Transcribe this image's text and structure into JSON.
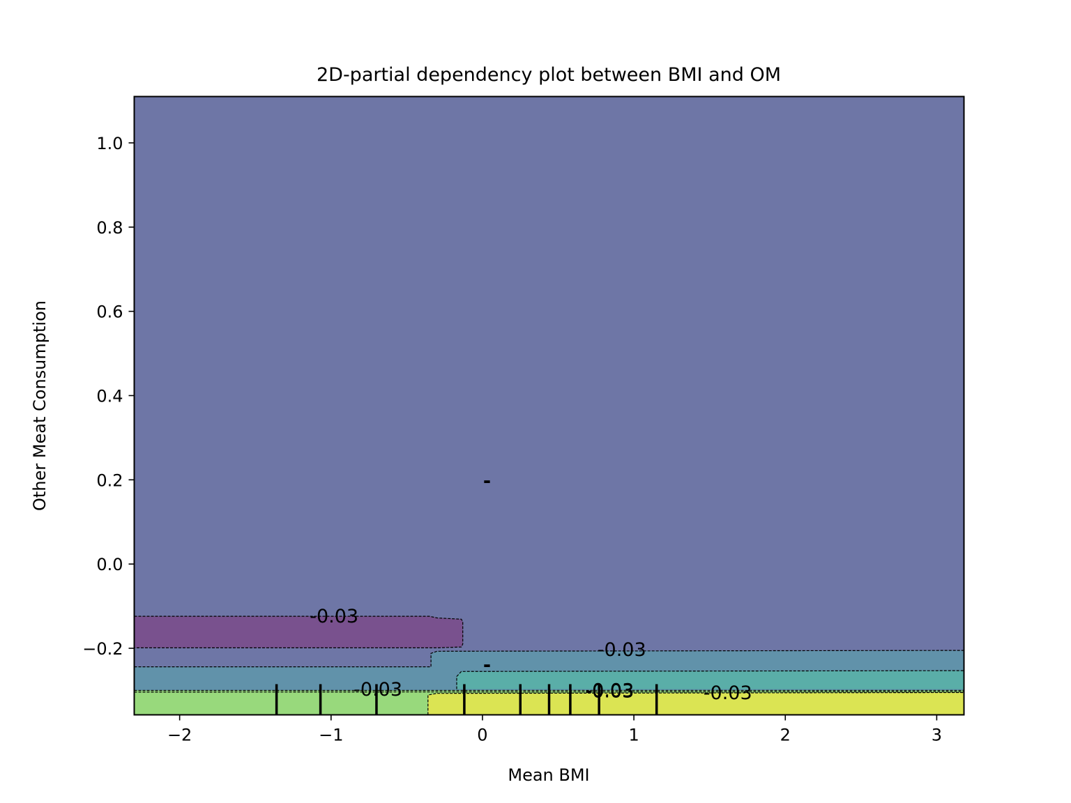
{
  "chart_data": {
    "type": "contour",
    "title": "2D-partial dependency plot between BMI and OM",
    "xlabel": "Mean BMI",
    "ylabel": "Other Meat Consumption",
    "xlim": [
      -2.3,
      3.18
    ],
    "ylim": [
      -0.358,
      1.11
    ],
    "x_ticks": [
      -2,
      -1,
      0,
      1,
      2,
      3
    ],
    "x_tick_labels": [
      "−2",
      "−1",
      "0",
      "1",
      "2",
      "3"
    ],
    "y_ticks": [
      1.0,
      0.8,
      0.6,
      0.4,
      0.2,
      0.0,
      -0.2
    ],
    "y_tick_labels": [
      "1.0",
      "0.8",
      "0.6",
      "0.4",
      "0.2",
      "0.0",
      "−0.2"
    ],
    "grid": false,
    "regions": [
      {
        "name": "background-level",
        "color": "#6e76a6",
        "polygon": [
          [
            -2.3,
            1.11
          ],
          [
            3.18,
            1.11
          ],
          [
            3.18,
            -0.358
          ],
          [
            -2.3,
            -0.358
          ]
        ]
      },
      {
        "name": "dark-purple-level",
        "color": "#79518e",
        "polygon": [
          [
            -2.3,
            -0.124
          ],
          [
            -0.35,
            -0.124
          ],
          [
            -0.3,
            -0.128
          ],
          [
            -0.14,
            -0.131
          ],
          [
            -0.13,
            -0.137
          ],
          [
            -0.13,
            -0.19
          ],
          [
            -0.14,
            -0.197
          ],
          [
            -0.3,
            -0.199
          ],
          [
            -2.3,
            -0.199
          ]
        ]
      },
      {
        "name": "steel-blue-level",
        "color": "#6192aa",
        "polygon": [
          [
            -2.3,
            -0.244
          ],
          [
            -0.34,
            -0.244
          ],
          [
            -0.34,
            -0.212
          ],
          [
            -0.3,
            -0.207
          ],
          [
            3.18,
            -0.205
          ],
          [
            3.18,
            -0.358
          ],
          [
            -2.3,
            -0.358
          ]
        ]
      },
      {
        "name": "teal-level",
        "color": "#5aaea8",
        "polygon": [
          [
            -0.17,
            -0.297
          ],
          [
            -0.17,
            -0.267
          ],
          [
            -0.14,
            -0.255
          ],
          [
            3.18,
            -0.253
          ],
          [
            3.18,
            -0.297
          ]
        ]
      },
      {
        "name": "green-level",
        "color": "#98d97c",
        "polygon": [
          [
            -2.3,
            -0.3
          ],
          [
            3.18,
            -0.3
          ],
          [
            3.18,
            -0.358
          ],
          [
            -2.3,
            -0.358
          ]
        ]
      },
      {
        "name": "yellow-level",
        "color": "#dbe453",
        "polygon": [
          [
            -0.36,
            -0.358
          ],
          [
            -0.36,
            -0.311
          ],
          [
            -0.3,
            -0.307
          ],
          [
            3.18,
            -0.305
          ],
          [
            3.18,
            -0.358
          ]
        ]
      }
    ],
    "contour_lines": [
      [
        [
          -2.3,
          -0.124
        ],
        [
          -0.35,
          -0.124
        ],
        [
          -0.3,
          -0.128
        ],
        [
          -0.14,
          -0.131
        ],
        [
          -0.13,
          -0.137
        ],
        [
          -0.13,
          -0.19
        ],
        [
          -0.14,
          -0.197
        ],
        [
          -0.3,
          -0.199
        ],
        [
          -2.3,
          -0.199
        ]
      ],
      [
        [
          -2.3,
          -0.244
        ],
        [
          -0.34,
          -0.244
        ],
        [
          -0.34,
          -0.212
        ],
        [
          -0.3,
          -0.207
        ],
        [
          3.18,
          -0.205
        ]
      ],
      [
        [
          -0.17,
          -0.297
        ],
        [
          -0.17,
          -0.267
        ],
        [
          -0.14,
          -0.255
        ],
        [
          3.18,
          -0.253
        ]
      ],
      [
        [
          -2.3,
          -0.3
        ],
        [
          3.18,
          -0.3
        ]
      ],
      [
        [
          -2.3,
          -0.304
        ],
        [
          3.18,
          -0.303
        ]
      ],
      [
        [
          -0.36,
          -0.358
        ],
        [
          -0.36,
          -0.311
        ],
        [
          -0.3,
          -0.307
        ],
        [
          3.18,
          -0.305
        ]
      ]
    ],
    "contour_labels": [
      {
        "text": "-0.03",
        "x": -0.98,
        "y": -0.124
      },
      {
        "text": "-0.03",
        "x": 0.92,
        "y": -0.203
      },
      {
        "text": "-0.03",
        "x": -0.69,
        "y": -0.298
      },
      {
        "text": "-0.03",
        "x": 0.84,
        "y": -0.3
      },
      {
        "text": "-0.03",
        "x": 0.84,
        "y": -0.302
      },
      {
        "text": "-0.03",
        "x": 1.62,
        "y": -0.306
      }
    ],
    "stray_labels": [
      {
        "text": "-",
        "x": 0.03,
        "y": 0.197
      },
      {
        "text": "-",
        "x": 0.03,
        "y": -0.24
      }
    ],
    "rug_x": [
      -1.36,
      -1.07,
      -0.7,
      -0.12,
      0.25,
      0.44,
      0.58,
      0.77,
      1.15
    ]
  }
}
